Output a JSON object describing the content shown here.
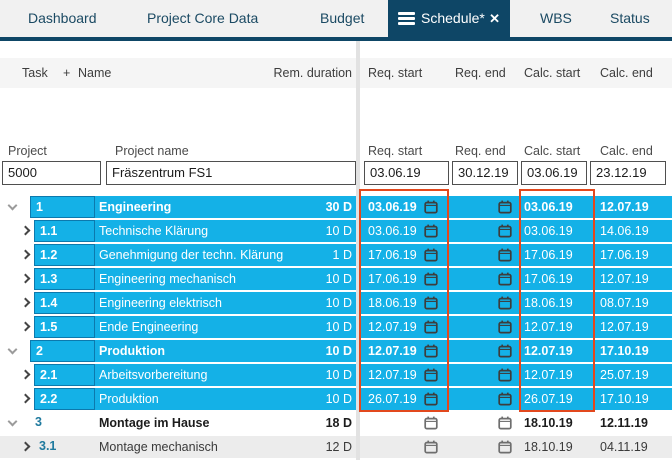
{
  "tabs": [
    {
      "label": "Dashboard",
      "active": false
    },
    {
      "label": "Project Core Data",
      "active": false
    },
    {
      "label": "Budget",
      "active": false
    },
    {
      "label": "Schedule*",
      "active": true
    },
    {
      "label": "WBS",
      "active": false
    },
    {
      "label": "Status",
      "active": false
    }
  ],
  "grid_header": {
    "task": "Task",
    "add_column": "+",
    "name": "Name",
    "rem_duration": "Rem. duration",
    "req_start": "Req. start",
    "req_end": "Req. end",
    "calc_start": "Calc. start",
    "calc_end": "Calc. end"
  },
  "project": {
    "label_project": "Project",
    "label_project_name": "Project name",
    "label_req_start": "Req. start",
    "label_req_end": "Req. end",
    "label_calc_start": "Calc. start",
    "label_calc_end": "Calc. end",
    "id": "5000",
    "name": "Fräszentrum FS1",
    "req_start": "03.06.19",
    "req_end": "30.12.19",
    "calc_start": "03.06.19",
    "calc_end": "23.12.19"
  },
  "tasks": [
    {
      "id": "1",
      "name": "Engineering",
      "duration": "30 D",
      "req_start": "03.06.19",
      "req_end": "",
      "calc_start": "03.06.19",
      "calc_end": "12.07.19",
      "level": 1,
      "bold": true,
      "selected": true,
      "shade": false,
      "expanded": true
    },
    {
      "id": "1.1",
      "name": "Technische Klärung",
      "duration": "10 D",
      "req_start": "03.06.19",
      "req_end": "",
      "calc_start": "03.06.19",
      "calc_end": "14.06.19",
      "level": 2,
      "bold": false,
      "selected": true,
      "shade": false,
      "expanded": false
    },
    {
      "id": "1.2",
      "name": "Genehmigung der techn. Klärung",
      "duration": "1 D",
      "req_start": "17.06.19",
      "req_end": "",
      "calc_start": "17.06.19",
      "calc_end": "17.06.19",
      "level": 2,
      "bold": false,
      "selected": true,
      "shade": false,
      "expanded": false
    },
    {
      "id": "1.3",
      "name": "Engineering mechanisch",
      "duration": "10 D",
      "req_start": "17.06.19",
      "req_end": "",
      "calc_start": "17.06.19",
      "calc_end": "12.07.19",
      "level": 2,
      "bold": false,
      "selected": true,
      "shade": false,
      "expanded": false
    },
    {
      "id": "1.4",
      "name": "Engineering elektrisch",
      "duration": "10 D",
      "req_start": "18.06.19",
      "req_end": "",
      "calc_start": "18.06.19",
      "calc_end": "08.07.19",
      "level": 2,
      "bold": false,
      "selected": true,
      "shade": false,
      "expanded": false
    },
    {
      "id": "1.5",
      "name": "Ende Engineering",
      "duration": "10 D",
      "req_start": "12.07.19",
      "req_end": "",
      "calc_start": "12.07.19",
      "calc_end": "12.07.19",
      "level": 2,
      "bold": false,
      "selected": true,
      "shade": false,
      "expanded": false
    },
    {
      "id": "2",
      "name": "Produktion",
      "duration": "10 D",
      "req_start": "12.07.19",
      "req_end": "",
      "calc_start": "12.07.19",
      "calc_end": "17.10.19",
      "level": 1,
      "bold": true,
      "selected": true,
      "shade": false,
      "expanded": true
    },
    {
      "id": "2.1",
      "name": "Arbeitsvorbereitung",
      "duration": "10 D",
      "req_start": "12.07.19",
      "req_end": "",
      "calc_start": "12.07.19",
      "calc_end": "25.07.19",
      "level": 2,
      "bold": false,
      "selected": true,
      "shade": false,
      "expanded": false
    },
    {
      "id": "2.2",
      "name": "Produktion",
      "duration": "10 D",
      "req_start": "26.07.19",
      "req_end": "",
      "calc_start": "26.07.19",
      "calc_end": "17.10.19",
      "level": 2,
      "bold": false,
      "selected": true,
      "shade": false,
      "expanded": false
    },
    {
      "id": "3",
      "name": "Montage im Hause",
      "duration": "18 D",
      "req_start": "",
      "req_end": "",
      "calc_start": "18.10.19",
      "calc_end": "12.11.19",
      "level": 1,
      "bold": true,
      "selected": false,
      "shade": false,
      "expanded": true
    },
    {
      "id": "3.1",
      "name": "Montage mechanisch",
      "duration": "12 D",
      "req_start": "",
      "req_end": "",
      "calc_start": "18.10.19",
      "calc_end": "04.11.19",
      "level": 2,
      "bold": false,
      "selected": false,
      "shade": true,
      "expanded": false
    }
  ],
  "annotations": {
    "req_start_highlight": "red-rectangle",
    "calc_start_highlight": "red-rectangle"
  },
  "colors": {
    "tab_navy": "#0e4666",
    "selection_cyan": "#14b1e7",
    "highlight_red": "#e2481d",
    "task_id_teal": "#1f7a9e",
    "alt_row_gray": "#ececec"
  }
}
